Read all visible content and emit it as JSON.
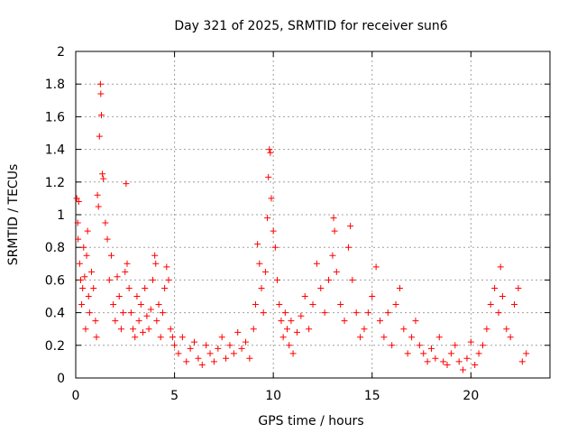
{
  "chart_data": {
    "type": "scatter",
    "title": "Day 321 of 2025, SRMTID for receiver sun6",
    "xlabel": "GPS time / hours",
    "ylabel": "SRMTID / TECUs",
    "xlim": [
      0,
      24
    ],
    "ylim": [
      0,
      2
    ],
    "xticks": [
      0,
      5,
      10,
      15,
      20
    ],
    "xtick_labels": [
      "0",
      "5",
      "10",
      "15",
      "20"
    ],
    "yticks": [
      0,
      0.2,
      0.4,
      0.6,
      0.8,
      1.0,
      1.2,
      1.4,
      1.6,
      1.8,
      2.0
    ],
    "ytick_labels": [
      "0",
      "0.2",
      "0.4",
      "0.6",
      "0.8",
      "1",
      "1.2",
      "1.4",
      "1.6",
      "1.8",
      "2"
    ],
    "grid": true,
    "marker": "+",
    "color": "#ff0000",
    "series": [
      {
        "name": "SRMTID",
        "points": [
          [
            0.05,
            1.1
          ],
          [
            0.1,
            0.95
          ],
          [
            0.12,
            0.85
          ],
          [
            0.15,
            1.08
          ],
          [
            0.2,
            0.7
          ],
          [
            0.25,
            0.6
          ],
          [
            0.3,
            0.45
          ],
          [
            0.35,
            0.55
          ],
          [
            0.4,
            0.8
          ],
          [
            0.45,
            0.62
          ],
          [
            0.5,
            0.3
          ],
          [
            0.55,
            0.75
          ],
          [
            0.6,
            0.9
          ],
          [
            0.65,
            0.5
          ],
          [
            0.7,
            0.4
          ],
          [
            0.8,
            0.65
          ],
          [
            0.9,
            0.55
          ],
          [
            1.0,
            0.35
          ],
          [
            1.05,
            0.25
          ],
          [
            1.1,
            1.12
          ],
          [
            1.15,
            1.05
          ],
          [
            1.2,
            1.48
          ],
          [
            1.25,
            1.8
          ],
          [
            1.27,
            1.74
          ],
          [
            1.3,
            1.61
          ],
          [
            1.35,
            1.25
          ],
          [
            1.4,
            1.22
          ],
          [
            1.5,
            0.95
          ],
          [
            1.6,
            0.85
          ],
          [
            1.7,
            0.6
          ],
          [
            1.8,
            0.75
          ],
          [
            1.9,
            0.45
          ],
          [
            2.0,
            0.35
          ],
          [
            2.1,
            0.62
          ],
          [
            2.2,
            0.5
          ],
          [
            2.3,
            0.3
          ],
          [
            2.4,
            0.4
          ],
          [
            2.5,
            0.65
          ],
          [
            2.55,
            1.19
          ],
          [
            2.6,
            0.7
          ],
          [
            2.7,
            0.55
          ],
          [
            2.8,
            0.4
          ],
          [
            2.9,
            0.3
          ],
          [
            3.0,
            0.25
          ],
          [
            3.1,
            0.5
          ],
          [
            3.2,
            0.35
          ],
          [
            3.3,
            0.45
          ],
          [
            3.4,
            0.28
          ],
          [
            3.5,
            0.55
          ],
          [
            3.6,
            0.38
          ],
          [
            3.7,
            0.3
          ],
          [
            3.8,
            0.42
          ],
          [
            3.9,
            0.6
          ],
          [
            4.0,
            0.75
          ],
          [
            4.05,
            0.7
          ],
          [
            4.1,
            0.35
          ],
          [
            4.2,
            0.45
          ],
          [
            4.3,
            0.25
          ],
          [
            4.4,
            0.4
          ],
          [
            4.5,
            0.55
          ],
          [
            4.6,
            0.68
          ],
          [
            4.7,
            0.6
          ],
          [
            4.8,
            0.3
          ],
          [
            4.9,
            0.25
          ],
          [
            5.0,
            0.2
          ],
          [
            5.2,
            0.15
          ],
          [
            5.4,
            0.25
          ],
          [
            5.6,
            0.1
          ],
          [
            5.8,
            0.18
          ],
          [
            6.0,
            0.22
          ],
          [
            6.2,
            0.12
          ],
          [
            6.4,
            0.08
          ],
          [
            6.6,
            0.2
          ],
          [
            6.8,
            0.15
          ],
          [
            7.0,
            0.1
          ],
          [
            7.2,
            0.18
          ],
          [
            7.4,
            0.25
          ],
          [
            7.6,
            0.12
          ],
          [
            7.8,
            0.2
          ],
          [
            8.0,
            0.15
          ],
          [
            8.2,
            0.28
          ],
          [
            8.4,
            0.18
          ],
          [
            8.6,
            0.22
          ],
          [
            8.8,
            0.12
          ],
          [
            9.0,
            0.3
          ],
          [
            9.1,
            0.45
          ],
          [
            9.2,
            0.82
          ],
          [
            9.3,
            0.7
          ],
          [
            9.4,
            0.55
          ],
          [
            9.5,
            0.4
          ],
          [
            9.6,
            0.65
          ],
          [
            9.7,
            0.98
          ],
          [
            9.75,
            1.23
          ],
          [
            9.8,
            1.4
          ],
          [
            9.85,
            1.38
          ],
          [
            9.9,
            1.1
          ],
          [
            10.0,
            0.9
          ],
          [
            10.1,
            0.8
          ],
          [
            10.2,
            0.6
          ],
          [
            10.3,
            0.45
          ],
          [
            10.4,
            0.35
          ],
          [
            10.5,
            0.25
          ],
          [
            10.6,
            0.4
          ],
          [
            10.7,
            0.3
          ],
          [
            10.8,
            0.2
          ],
          [
            10.9,
            0.35
          ],
          [
            11.0,
            0.15
          ],
          [
            11.2,
            0.28
          ],
          [
            11.4,
            0.38
          ],
          [
            11.6,
            0.5
          ],
          [
            11.8,
            0.3
          ],
          [
            12.0,
            0.45
          ],
          [
            12.2,
            0.7
          ],
          [
            12.4,
            0.55
          ],
          [
            12.6,
            0.4
          ],
          [
            12.8,
            0.6
          ],
          [
            13.0,
            0.75
          ],
          [
            13.05,
            0.98
          ],
          [
            13.1,
            0.9
          ],
          [
            13.2,
            0.65
          ],
          [
            13.4,
            0.45
          ],
          [
            13.6,
            0.35
          ],
          [
            13.8,
            0.8
          ],
          [
            13.9,
            0.93
          ],
          [
            14.0,
            0.6
          ],
          [
            14.2,
            0.4
          ],
          [
            14.4,
            0.25
          ],
          [
            14.6,
            0.3
          ],
          [
            14.8,
            0.4
          ],
          [
            15.0,
            0.5
          ],
          [
            15.2,
            0.68
          ],
          [
            15.4,
            0.35
          ],
          [
            15.6,
            0.25
          ],
          [
            15.8,
            0.4
          ],
          [
            16.0,
            0.2
          ],
          [
            16.2,
            0.45
          ],
          [
            16.4,
            0.55
          ],
          [
            16.6,
            0.3
          ],
          [
            16.8,
            0.15
          ],
          [
            17.0,
            0.25
          ],
          [
            17.2,
            0.35
          ],
          [
            17.4,
            0.2
          ],
          [
            17.6,
            0.15
          ],
          [
            17.8,
            0.1
          ],
          [
            18.0,
            0.18
          ],
          [
            18.2,
            0.12
          ],
          [
            18.4,
            0.25
          ],
          [
            18.6,
            0.1
          ],
          [
            18.8,
            0.08
          ],
          [
            19.0,
            0.15
          ],
          [
            19.2,
            0.2
          ],
          [
            19.4,
            0.1
          ],
          [
            19.6,
            0.05
          ],
          [
            19.8,
            0.12
          ],
          [
            20.0,
            0.22
          ],
          [
            20.2,
            0.08
          ],
          [
            20.4,
            0.15
          ],
          [
            20.6,
            0.2
          ],
          [
            20.8,
            0.3
          ],
          [
            21.0,
            0.45
          ],
          [
            21.2,
            0.55
          ],
          [
            21.4,
            0.4
          ],
          [
            21.5,
            0.68
          ],
          [
            21.6,
            0.5
          ],
          [
            21.8,
            0.3
          ],
          [
            22.0,
            0.25
          ],
          [
            22.2,
            0.45
          ],
          [
            22.4,
            0.55
          ],
          [
            22.6,
            0.1
          ],
          [
            22.8,
            0.15
          ]
        ]
      }
    ]
  }
}
